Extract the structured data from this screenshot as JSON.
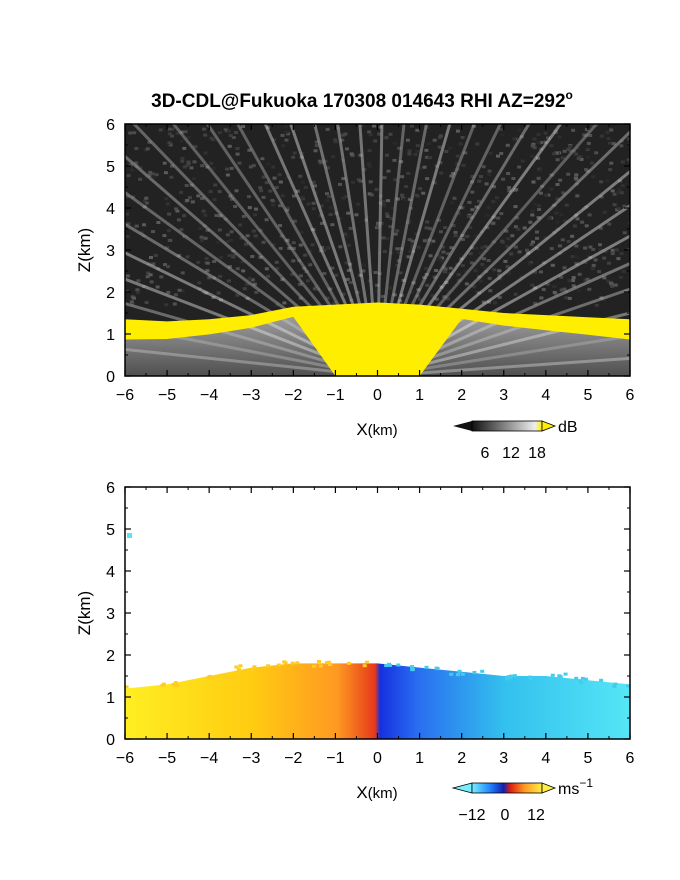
{
  "chart_data": [
    {
      "type": "heatmap",
      "title": "3D-CDL@Fukuoka 170308 014643 RHI AZ=292",
      "title_sup": "o",
      "xlabel": "X",
      "xlabel_unit": "(km)",
      "ylabel": "Z(km)",
      "xlim": [
        -6,
        6
      ],
      "ylim": [
        0,
        6
      ],
      "xticks": [
        "−6",
        "−5",
        "−4",
        "−3",
        "−2",
        "−1",
        "0",
        "1",
        "2",
        "3",
        "4",
        "5",
        "6"
      ],
      "yticks": [
        "0",
        "1",
        "2",
        "3",
        "4",
        "5",
        "6"
      ],
      "colorbar": {
        "label": "dB",
        "ticks": [
          "6",
          "12",
          "18"
        ],
        "range": [
          0,
          18
        ],
        "colormap": "grayscale to yellow"
      },
      "echo_top_profile": [
        {
          "x": -6,
          "z": 1.35
        },
        {
          "x": -5,
          "z": 1.3
        },
        {
          "x": -4,
          "z": 1.35
        },
        {
          "x": -3,
          "z": 1.45
        },
        {
          "x": -2,
          "z": 1.65
        },
        {
          "x": -1,
          "z": 1.7
        },
        {
          "x": 0,
          "z": 1.75
        },
        {
          "x": 1,
          "z": 1.7
        },
        {
          "x": 2,
          "z": 1.6
        },
        {
          "x": 3,
          "z": 1.5
        },
        {
          "x": 4,
          "z": 1.45
        },
        {
          "x": 5,
          "z": 1.4
        },
        {
          "x": 6,
          "z": 1.35
        }
      ]
    },
    {
      "type": "heatmap",
      "xlabel": "X",
      "xlabel_unit": "(km)",
      "ylabel": "Z(km)",
      "xlim": [
        -6,
        6
      ],
      "ylim": [
        0,
        6
      ],
      "xticks": [
        "−6",
        "−5",
        "−4",
        "−3",
        "−2",
        "−1",
        "0",
        "1",
        "2",
        "3",
        "4",
        "5",
        "6"
      ],
      "yticks": [
        "0",
        "1",
        "2",
        "3",
        "4",
        "5",
        "6"
      ],
      "colorbar": {
        "label": "ms",
        "label_sup": "−1",
        "ticks": [
          "−12",
          "0",
          "12"
        ],
        "range": [
          -12,
          12
        ],
        "colormap": "cyan-blue-red-yellow"
      },
      "velocity_by_x": [
        {
          "x": -6,
          "v": 12
        },
        {
          "x": -4,
          "v": 11
        },
        {
          "x": -2,
          "v": 8
        },
        {
          "x": -0.5,
          "v": 3
        },
        {
          "x": 0.5,
          "v": -3
        },
        {
          "x": 2,
          "v": -8
        },
        {
          "x": 4,
          "v": -11
        },
        {
          "x": 6,
          "v": -12
        }
      ],
      "echo_top_profile": [
        {
          "x": -6,
          "z": 1.2
        },
        {
          "x": -5,
          "z": 1.3
        },
        {
          "x": -4,
          "z": 1.5
        },
        {
          "x": -3,
          "z": 1.7
        },
        {
          "x": -2,
          "z": 1.8
        },
        {
          "x": -1,
          "z": 1.8
        },
        {
          "x": 0,
          "z": 1.8
        },
        {
          "x": 1,
          "z": 1.7
        },
        {
          "x": 2,
          "z": 1.6
        },
        {
          "x": 3,
          "z": 1.5
        },
        {
          "x": 4,
          "z": 1.5
        },
        {
          "x": 5,
          "z": 1.4
        },
        {
          "x": 6,
          "z": 1.3
        }
      ]
    }
  ]
}
